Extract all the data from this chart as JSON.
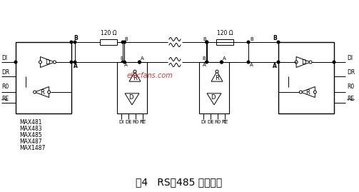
{
  "title": "图4   RS－485 多机通信",
  "title_fontsize": 10,
  "bg_color": "#ffffff",
  "line_color": "#000000",
  "watermark_text": "elecfans.com",
  "watermark_color": "#cc2222",
  "resistor_label": "120 Ω",
  "chip_labels_left": [
    "MAX481",
    "MAX483",
    "MAX485",
    "MAX487",
    "MAX1487"
  ],
  "left_pins": [
    "DI",
    "DR",
    "R0",
    "RE"
  ],
  "right_pins": [
    "DI",
    "DR",
    "R0",
    "RE"
  ],
  "slave_bot_labels": [
    "DI",
    "DE",
    "R0",
    "RE"
  ]
}
